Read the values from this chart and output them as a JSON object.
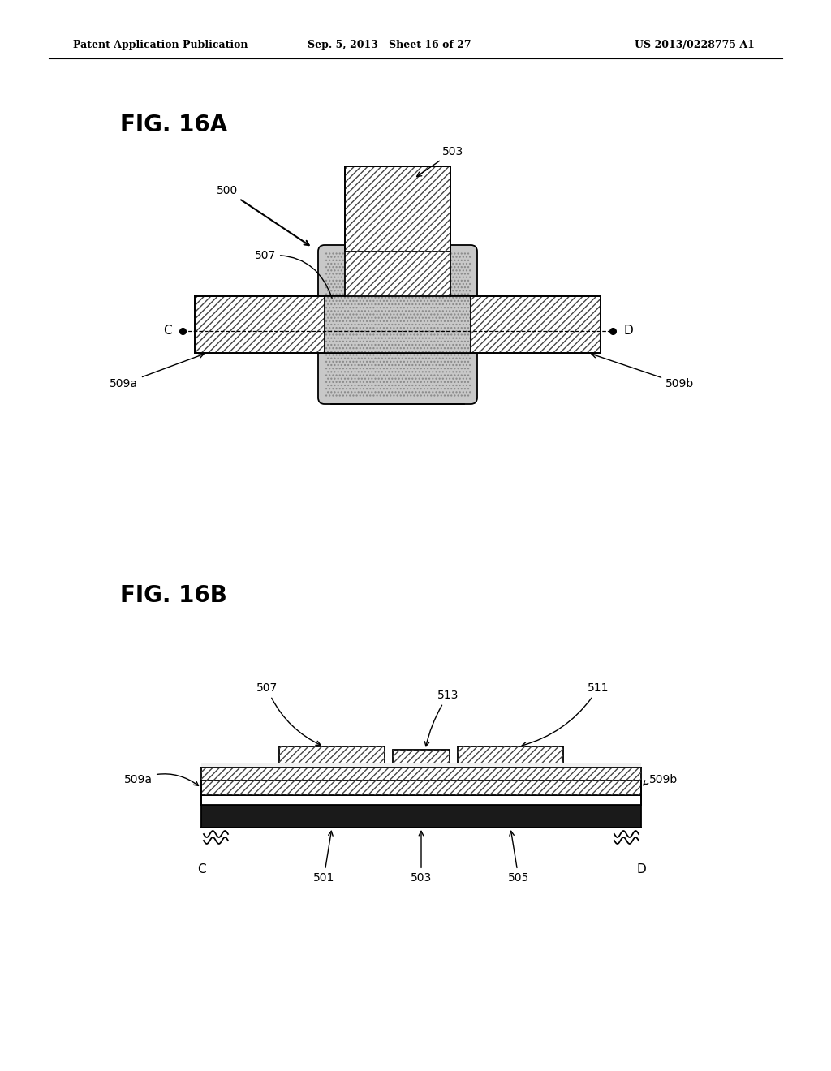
{
  "fig_title_16a": "FIG. 16A",
  "fig_title_16b": "FIG. 16B",
  "header_left": "Patent Application Publication",
  "header_center": "Sep. 5, 2013   Sheet 16 of 27",
  "header_right": "US 2013/0228775 A1",
  "bg_color": "#ffffff",
  "line_color": "#000000"
}
